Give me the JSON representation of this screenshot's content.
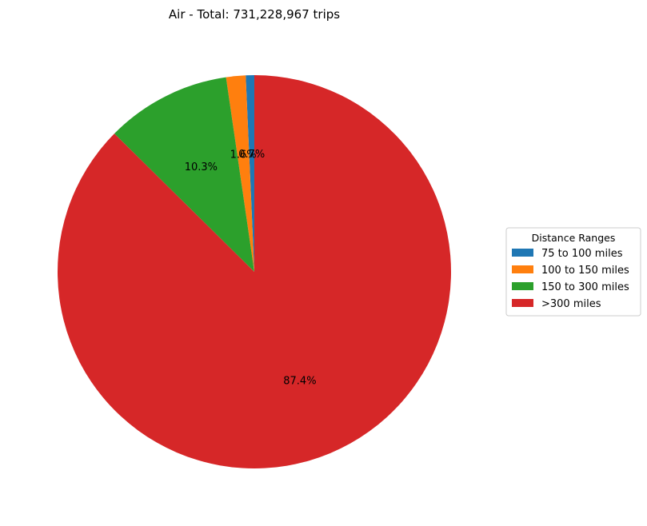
{
  "chart_data": {
    "type": "pie",
    "title": "Air - Total: 731,228,967 trips",
    "categories": [
      "75 to 100 miles",
      "100 to 150 miles",
      "150 to 300 miles",
      ">300 miles"
    ],
    "values": [
      0.7,
      1.6,
      10.3,
      87.4
    ],
    "value_labels": [
      "0.7%",
      "1.6%",
      "10.3%",
      "87.4%"
    ],
    "colors": [
      "#1f77b4",
      "#ff7f0e",
      "#2ca02c",
      "#d62728"
    ],
    "start_angle_deg": 90,
    "direction": "counterclockwise",
    "legend": {
      "title": "Distance Ranges",
      "placement": "right"
    }
  }
}
